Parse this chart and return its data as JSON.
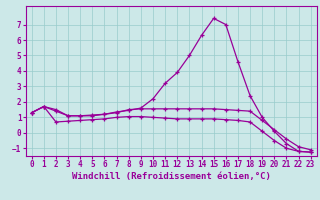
{
  "xlabel": "Windchill (Refroidissement éolien,°C)",
  "bg_color": "#cce8e8",
  "line_color": "#990099",
  "grid_color": "#99cccc",
  "line1_y": [
    1.3,
    1.7,
    1.5,
    1.1,
    1.1,
    1.1,
    1.2,
    1.35,
    1.45,
    1.6,
    2.2,
    3.2,
    3.9,
    5.0,
    6.3,
    7.4,
    7.0,
    4.6,
    2.4,
    1.0,
    0.1,
    -0.7,
    -1.2,
    -1.25
  ],
  "line2_y": [
    1.3,
    1.7,
    1.4,
    1.1,
    1.1,
    1.15,
    1.2,
    1.3,
    1.5,
    1.55,
    1.55,
    1.55,
    1.55,
    1.55,
    1.55,
    1.55,
    1.5,
    1.45,
    1.4,
    0.8,
    0.2,
    -0.4,
    -0.9,
    -1.1
  ],
  "line3_y": [
    1.3,
    1.7,
    0.7,
    0.75,
    0.8,
    0.85,
    0.9,
    1.0,
    1.05,
    1.05,
    1.0,
    0.95,
    0.9,
    0.9,
    0.9,
    0.9,
    0.85,
    0.8,
    0.7,
    0.1,
    -0.5,
    -1.0,
    -1.2,
    -1.25
  ],
  "x": [
    0,
    1,
    2,
    3,
    4,
    5,
    6,
    7,
    8,
    9,
    10,
    11,
    12,
    13,
    14,
    15,
    16,
    17,
    18,
    19,
    20,
    21,
    22,
    23
  ],
  "xlim": [
    -0.5,
    23.5
  ],
  "ylim": [
    -1.5,
    8.2
  ],
  "yticks": [
    -1,
    0,
    1,
    2,
    3,
    4,
    5,
    6,
    7
  ],
  "xticks": [
    0,
    1,
    2,
    3,
    4,
    5,
    6,
    7,
    8,
    9,
    10,
    11,
    12,
    13,
    14,
    15,
    16,
    17,
    18,
    19,
    20,
    21,
    22,
    23
  ],
  "tick_fontsize": 5.5,
  "xlabel_fontsize": 6.5
}
